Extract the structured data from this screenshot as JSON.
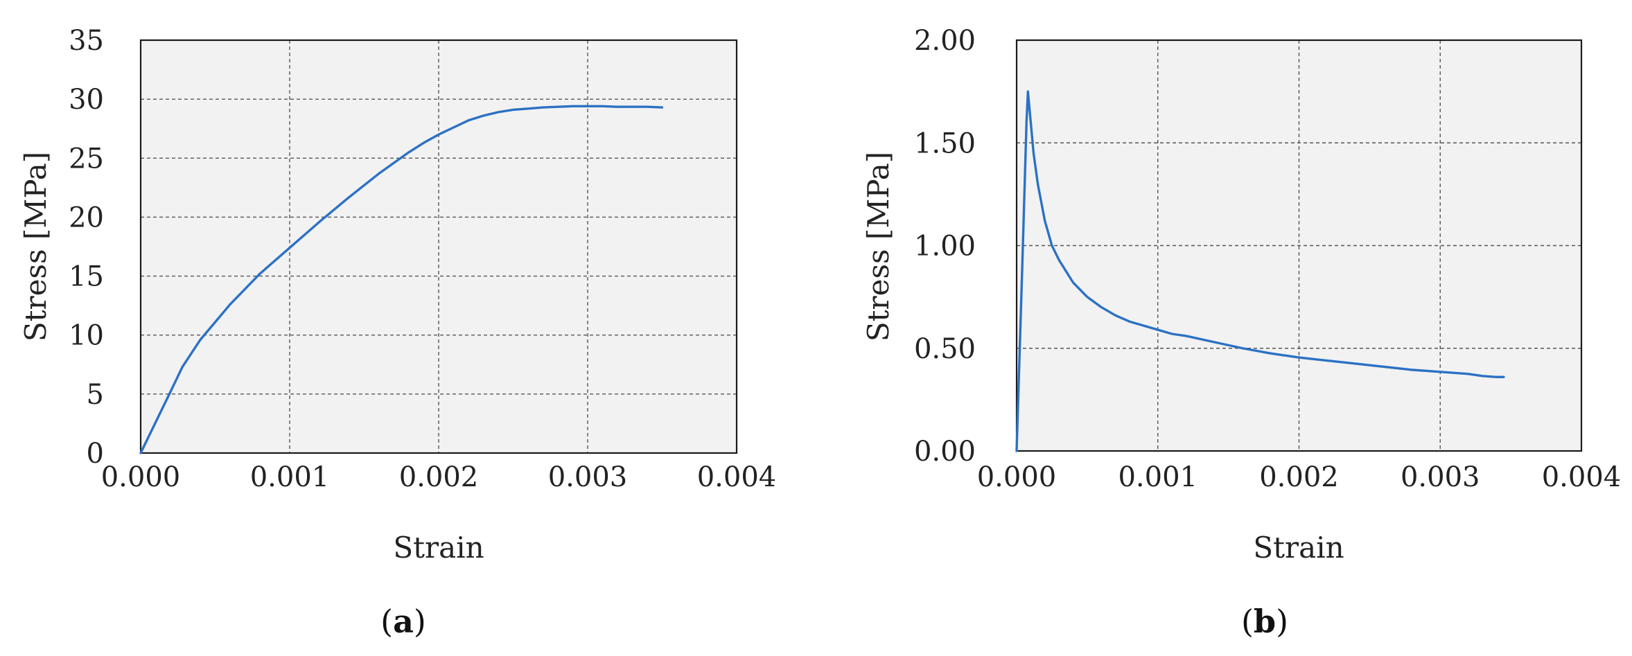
{
  "chart_data": [
    {
      "type": "line",
      "panel_label": "a",
      "title": "",
      "xlabel": "Strain",
      "ylabel": "Stress [MPa]",
      "xlim": [
        0,
        0.004
      ],
      "ylim": [
        0,
        35
      ],
      "xticks": [
        0,
        0.001,
        0.002,
        0.003,
        0.004
      ],
      "xtick_labels": [
        "0.000",
        "0.001",
        "0.002",
        "0.003",
        "0.004"
      ],
      "yticks": [
        0,
        5,
        10,
        15,
        20,
        25,
        30,
        35
      ],
      "ytick_labels": [
        "0",
        "5",
        "10",
        "15",
        "20",
        "25",
        "30",
        "35"
      ],
      "grid": true,
      "color": "#2b71c4",
      "series": [
        {
          "x": [
            0,
            0.0001,
            0.0002,
            0.00028,
            0.0004,
            0.0005,
            0.0006,
            0.0008,
            0.001,
            0.0012,
            0.0014,
            0.0016,
            0.0018,
            0.0019,
            0.002,
            0.0021,
            0.0022,
            0.0023,
            0.0024,
            0.0025,
            0.0026,
            0.0027,
            0.0028,
            0.0029,
            0.003,
            0.0031,
            0.0032,
            0.0033,
            0.0034,
            0.0035
          ],
          "y": [
            0,
            2.6,
            5.2,
            7.3,
            9.6,
            11.1,
            12.6,
            15.2,
            17.4,
            19.6,
            21.7,
            23.7,
            25.5,
            26.3,
            27.0,
            27.6,
            28.2,
            28.6,
            28.9,
            29.1,
            29.2,
            29.3,
            29.35,
            29.4,
            29.4,
            29.4,
            29.35,
            29.35,
            29.35,
            29.3
          ]
        }
      ]
    },
    {
      "type": "line",
      "panel_label": "b",
      "title": "",
      "xlabel": "Strain",
      "ylabel": "Stress [MPa]",
      "xlim": [
        0,
        0.004
      ],
      "ylim": [
        0,
        2
      ],
      "xticks": [
        0,
        0.001,
        0.002,
        0.003,
        0.004
      ],
      "xtick_labels": [
        "0.000",
        "0.001",
        "0.002",
        "0.003",
        "0.004"
      ],
      "yticks": [
        0,
        0.5,
        1,
        1.5,
        2
      ],
      "ytick_labels": [
        "0.00",
        "0.50",
        "1.00",
        "1.50",
        "2.00"
      ],
      "grid": true,
      "color": "#2b71c4",
      "series": [
        {
          "x": [
            0,
            4e-05,
            7e-05,
            8e-05,
            0.0001,
            0.00012,
            0.00015,
            0.0002,
            0.00025,
            0.0003,
            0.0004,
            0.0005,
            0.0006,
            0.0007,
            0.0008,
            0.0009,
            0.001,
            0.0011,
            0.0012,
            0.0014,
            0.0016,
            0.0018,
            0.002,
            0.0022,
            0.0024,
            0.0026,
            0.0028,
            0.003,
            0.0032,
            0.0033,
            0.0034,
            0.00345
          ],
          "y": [
            0,
            0.9,
            1.6,
            1.75,
            1.6,
            1.45,
            1.3,
            1.12,
            1.0,
            0.93,
            0.82,
            0.75,
            0.7,
            0.66,
            0.63,
            0.61,
            0.59,
            0.57,
            0.56,
            0.53,
            0.5,
            0.475,
            0.455,
            0.44,
            0.425,
            0.41,
            0.395,
            0.385,
            0.375,
            0.365,
            0.36,
            0.36
          ]
        }
      ]
    }
  ]
}
